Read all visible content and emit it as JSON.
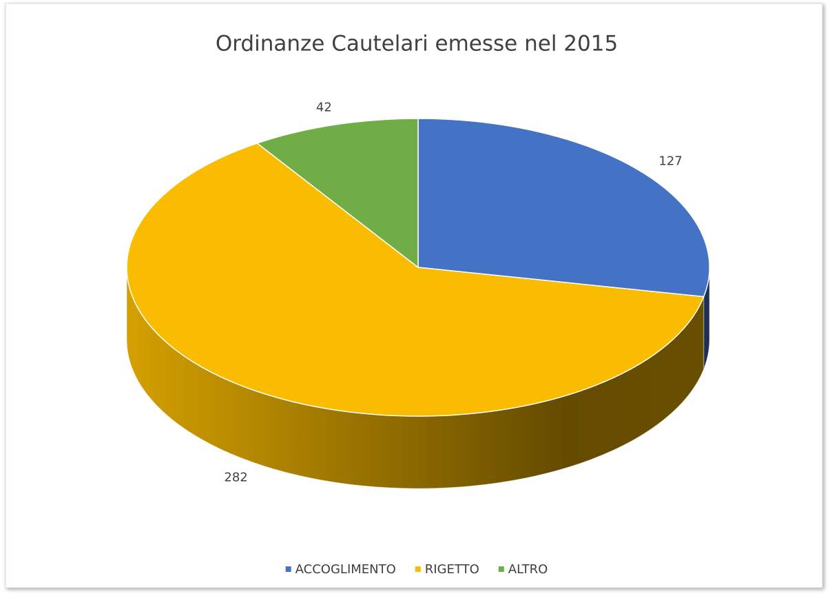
{
  "chart_data": {
    "type": "pie",
    "title": "Ordinanze Cautelari emesse nel 2015",
    "categories": [
      "ACCOGLIMENTO",
      "RIGETTO",
      "ALTRO"
    ],
    "values": [
      127,
      282,
      42
    ],
    "colors": [
      "#4472c4",
      "#f9bc00",
      "#70ad47"
    ],
    "legend": "bottom"
  }
}
